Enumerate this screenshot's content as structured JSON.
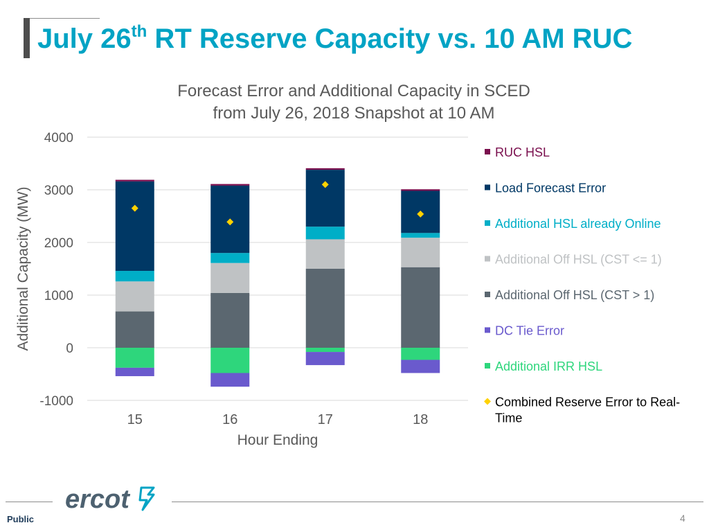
{
  "slide": {
    "title_prefix": "July 26",
    "title_sup": "th",
    "title_suffix": " RT Reserve Capacity vs. 10 AM RUC",
    "footer_label": "Public",
    "page_number": "4",
    "logo_text": "ercot"
  },
  "chart_data": {
    "type": "bar",
    "stacked": true,
    "title": "Forecast Error and Additional Capacity in SCED",
    "subtitle": "from July 26, 2018 Snapshot at 10 AM",
    "xlabel": "Hour Ending",
    "ylabel": "Additional Capacity (MW)",
    "ylim": [
      -1000,
      4000
    ],
    "yticks": [
      4000,
      3000,
      2000,
      1000,
      0,
      -1000
    ],
    "grid": true,
    "legend_position": "right",
    "categories": [
      "15",
      "16",
      "17",
      "18"
    ],
    "series": [
      {
        "name": "RUC HSL",
        "color": "#7a0f4e",
        "values": [
          30,
          30,
          30,
          30
        ]
      },
      {
        "name": "Load Forecast Error",
        "color": "#003865",
        "values": [
          1700,
          1280,
          1080,
          800
        ]
      },
      {
        "name": "Additional HSL already Online",
        "color": "#00aec7",
        "values": [
          200,
          190,
          240,
          90
        ]
      },
      {
        "name": "Additional Off HSL (CST <= 1)",
        "color": "#bfc2c4",
        "values": [
          570,
          570,
          560,
          560
        ]
      },
      {
        "name": "Additional Off HSL (CST > 1)",
        "color": "#5b6770",
        "values": [
          690,
          1040,
          1500,
          1530
        ]
      },
      {
        "name": "DC Tie Error",
        "color": "#6a5acd",
        "values": [
          -160,
          -260,
          -250,
          -250
        ]
      },
      {
        "name": "Additional IRR HSL",
        "color": "#2ed67c",
        "values": [
          -380,
          -480,
          -80,
          -230
        ]
      }
    ],
    "scatter": {
      "name": "Combined Reserve Error to Real-Time",
      "color": "#ffd200",
      "values": [
        2650,
        2390,
        3100,
        2540
      ]
    }
  }
}
